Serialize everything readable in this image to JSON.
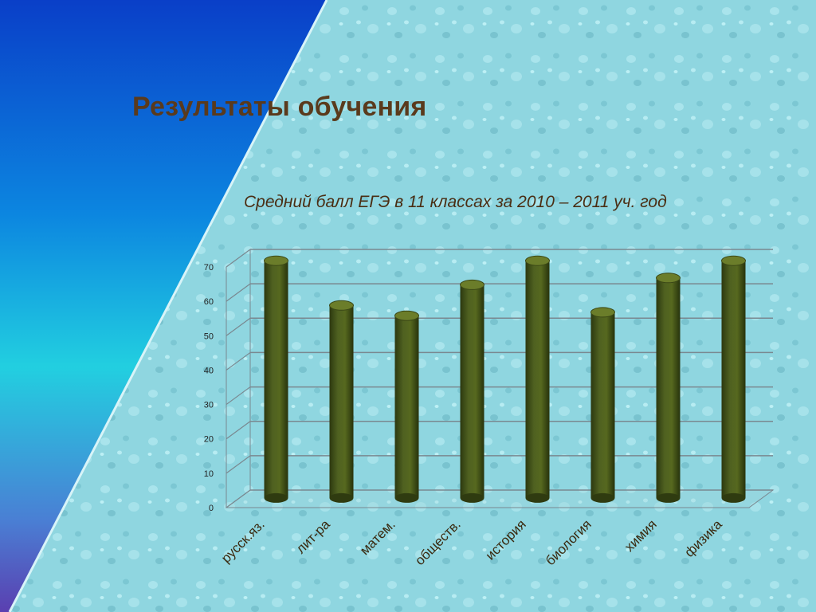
{
  "slide": {
    "title": "Результаты обучения",
    "subtitle": "Средний балл ЕГЭ в 11 классах  за 2010 – 2011 уч. год"
  },
  "colors": {
    "bar": "#4d5e1e",
    "bar_top": "#6b7d2a",
    "grid": "#7a8890",
    "background": "#8fd6e0",
    "title": "#5a3a1c"
  },
  "chart_data": {
    "type": "bar",
    "title": "Средний балл ЕГЭ в 11 классах  за 2010 – 2011 уч. год",
    "categories": [
      "русск.яз.",
      "лит-ра",
      "матем.",
      "обществ.",
      "история",
      "биология",
      "химия",
      "физика"
    ],
    "values": [
      69,
      56,
      53,
      62,
      69,
      54,
      64,
      69
    ],
    "ylim": [
      0,
      70
    ],
    "yticks": [
      0,
      10,
      20,
      30,
      40,
      50,
      60,
      70
    ],
    "grid": true,
    "style": "3d-cylinder"
  }
}
